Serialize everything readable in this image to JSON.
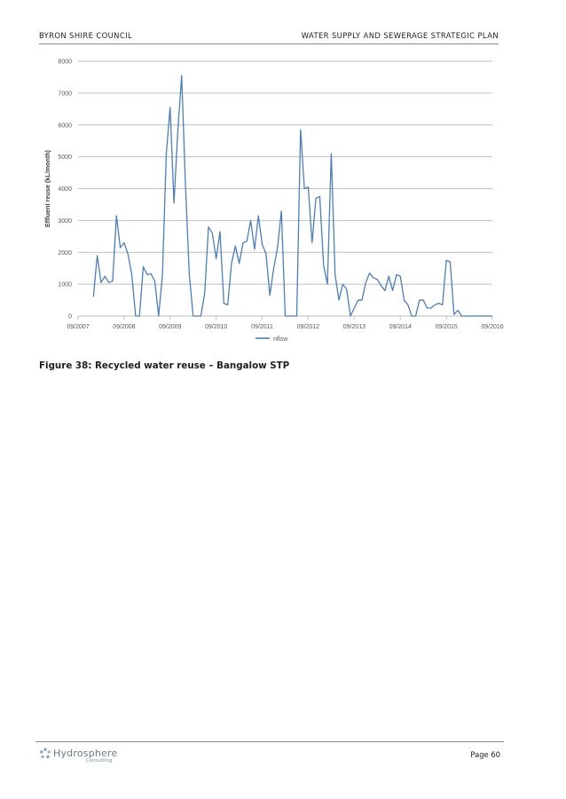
{
  "header": {
    "left": "BYRON SHIRE COUNCIL",
    "right": "WATER SUPPLY AND SEWERAGE STRATEGIC PLAN"
  },
  "caption": "Figure 38: Recycled water reuse – Bangalow STP",
  "footer": {
    "logo_name": "Hydrosphere",
    "logo_sub": "Consulting",
    "page": "Page 60"
  },
  "colors": {
    "series": "#4a7ebb",
    "grid": "#bfbfbf",
    "axis_text": "#595959"
  },
  "chart_data": {
    "type": "line",
    "ylabel": "Effluent reuse (kL/month)",
    "xlabel": "",
    "ylim": [
      0,
      8000
    ],
    "y_ticks": [
      0,
      1000,
      2000,
      3000,
      4000,
      5000,
      6000,
      7000,
      8000
    ],
    "xlim": [
      "2007-09",
      "2016-09"
    ],
    "x_ticks": [
      "09/2007",
      "09/2008",
      "09/2009",
      "09/2010",
      "09/2011",
      "09/2012",
      "09/2013",
      "09/2014",
      "09/2015",
      "09/2016"
    ],
    "grid": true,
    "legend_position": "bottom",
    "series": [
      {
        "name": "nflow",
        "x": [
          "2008-01",
          "2008-02",
          "2008-03",
          "2008-04",
          "2008-05",
          "2008-06",
          "2008-07",
          "2008-08",
          "2008-09",
          "2008-10",
          "2008-11",
          "2008-12",
          "2009-01",
          "2009-02",
          "2009-03",
          "2009-04",
          "2009-05",
          "2009-06",
          "2009-07",
          "2009-08",
          "2009-09",
          "2009-10",
          "2009-11",
          "2009-12",
          "2010-01",
          "2010-02",
          "2010-03",
          "2010-04",
          "2010-05",
          "2010-06",
          "2010-07",
          "2010-08",
          "2010-09",
          "2010-10",
          "2010-11",
          "2010-12",
          "2011-01",
          "2011-02",
          "2011-03",
          "2011-04",
          "2011-05",
          "2011-06",
          "2011-07",
          "2011-08",
          "2011-09",
          "2011-10",
          "2011-11",
          "2011-12",
          "2012-01",
          "2012-02",
          "2012-03",
          "2012-04",
          "2012-05",
          "2012-06",
          "2012-07",
          "2012-08",
          "2012-09",
          "2012-10",
          "2012-11",
          "2012-12",
          "2013-01",
          "2013-02",
          "2013-03",
          "2013-04",
          "2013-05",
          "2013-06",
          "2013-07",
          "2013-08",
          "2013-09",
          "2013-10",
          "2013-11",
          "2013-12",
          "2014-01",
          "2014-02",
          "2014-03",
          "2014-04",
          "2014-05",
          "2014-06",
          "2014-07",
          "2014-08",
          "2014-09",
          "2014-10",
          "2014-11",
          "2014-12",
          "2015-01",
          "2015-02",
          "2015-03",
          "2015-04",
          "2015-05",
          "2015-06",
          "2015-07",
          "2015-08",
          "2015-09",
          "2015-10",
          "2015-11",
          "2015-12",
          "2016-01",
          "2016-02",
          "2016-03",
          "2016-04",
          "2016-05",
          "2016-06",
          "2016-07",
          "2016-08",
          "2016-09"
        ],
        "values": [
          600,
          1900,
          1050,
          1250,
          1050,
          1100,
          3150,
          2150,
          2300,
          1950,
          1300,
          0,
          0,
          1550,
          1300,
          1330,
          1100,
          0,
          1300,
          5100,
          6550,
          3550,
          5800,
          7550,
          4100,
          1300,
          0,
          0,
          0,
          700,
          2800,
          2600,
          1800,
          2650,
          400,
          350,
          1650,
          2200,
          1650,
          2300,
          2350,
          3000,
          2100,
          3150,
          2250,
          1950,
          650,
          1500,
          2150,
          3300,
          0,
          0,
          0,
          0,
          5850,
          4000,
          4050,
          2300,
          3700,
          3750,
          1600,
          1000,
          5100,
          1300,
          500,
          1000,
          850,
          0,
          250,
          500,
          500,
          1050,
          1350,
          1200,
          1150,
          950,
          800,
          1250,
          800,
          1300,
          1250,
          500,
          350,
          0,
          0,
          500,
          500,
          250,
          250,
          350,
          400,
          350,
          1750,
          1700,
          50,
          180,
          0,
          0,
          0,
          0,
          0,
          0,
          0,
          0,
          0
        ]
      }
    ]
  }
}
